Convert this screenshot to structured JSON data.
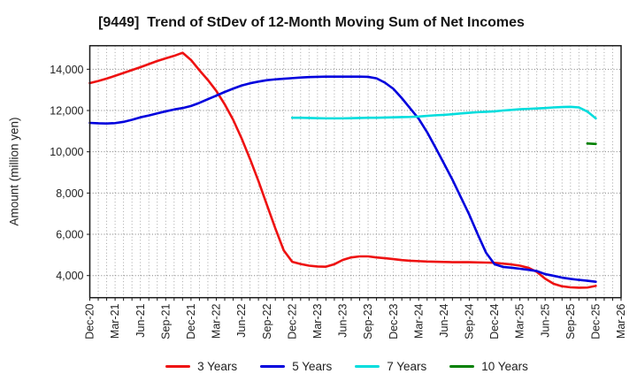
{
  "chart_data": {
    "type": "line",
    "title": "[9449]  Trend of StDev of 12-Month Moving Sum of Net Incomes",
    "ylabel": "Amount (million yen)",
    "grid": true,
    "legend_position": "bottom",
    "ylim": [
      2929,
      15141
    ],
    "y_ticks": [
      4000,
      6000,
      8000,
      10000,
      12000,
      14000
    ],
    "y_tick_labels": [
      "4,000",
      "6,000",
      "8,000",
      "10,000",
      "12,000",
      "14,000"
    ],
    "x_months_total": 63,
    "months_per_tick": 3,
    "x_tick_labels": [
      "Dec-20",
      "Mar-21",
      "Jun-21",
      "Sep-21",
      "Dec-21",
      "Mar-22",
      "Jun-22",
      "Sep-22",
      "Dec-22",
      "Mar-23",
      "Jun-23",
      "Sep-23",
      "Dec-23",
      "Mar-24",
      "Jun-24",
      "Sep-24",
      "Dec-24",
      "Mar-25",
      "Jun-25",
      "Sep-25",
      "Dec-25",
      "Mar-26"
    ],
    "series": [
      {
        "name": "3 Years",
        "color": "#ee1111",
        "start_month": 0,
        "values": [
          13330,
          13430,
          13550,
          13680,
          13820,
          13960,
          14100,
          14250,
          14400,
          14530,
          14650,
          14800,
          14450,
          13950,
          13480,
          12950,
          12300,
          11550,
          10650,
          9650,
          8580,
          7430,
          6290,
          5220,
          4670,
          4560,
          4480,
          4440,
          4430,
          4550,
          4760,
          4880,
          4930,
          4930,
          4880,
          4840,
          4800,
          4750,
          4720,
          4700,
          4680,
          4670,
          4660,
          4650,
          4650,
          4650,
          4640,
          4630,
          4620,
          4580,
          4540,
          4480,
          4380,
          4180,
          3850,
          3600,
          3480,
          3430,
          3410,
          3420,
          3500
        ]
      },
      {
        "name": "5 Years",
        "color": "#0000dd",
        "start_month": 0,
        "values": [
          11400,
          11380,
          11370,
          11390,
          11450,
          11550,
          11670,
          11760,
          11860,
          11960,
          12050,
          12120,
          12220,
          12370,
          12550,
          12720,
          12900,
          13060,
          13210,
          13320,
          13400,
          13470,
          13510,
          13540,
          13570,
          13600,
          13620,
          13630,
          13640,
          13640,
          13640,
          13640,
          13640,
          13630,
          13560,
          13350,
          13050,
          12600,
          12100,
          11600,
          10950,
          10200,
          9430,
          8650,
          7800,
          6950,
          6000,
          5100,
          4550,
          4420,
          4380,
          4330,
          4280,
          4220,
          4070,
          3990,
          3900,
          3840,
          3790,
          3750,
          3700
        ]
      },
      {
        "name": "7 Years",
        "color": "#00dddd",
        "start_month": 24,
        "values": [
          11650,
          11650,
          11640,
          11630,
          11620,
          11620,
          11620,
          11630,
          11640,
          11650,
          11650,
          11660,
          11670,
          11680,
          11690,
          11710,
          11740,
          11770,
          11790,
          11820,
          11860,
          11890,
          11920,
          11940,
          11960,
          12000,
          12030,
          12060,
          12080,
          12100,
          12120,
          12150,
          12170,
          12180,
          12150,
          11950,
          11620
        ]
      },
      {
        "name": "10 Years",
        "color": "#008000",
        "start_month": 59,
        "values": [
          10400,
          10380
        ]
      }
    ]
  }
}
